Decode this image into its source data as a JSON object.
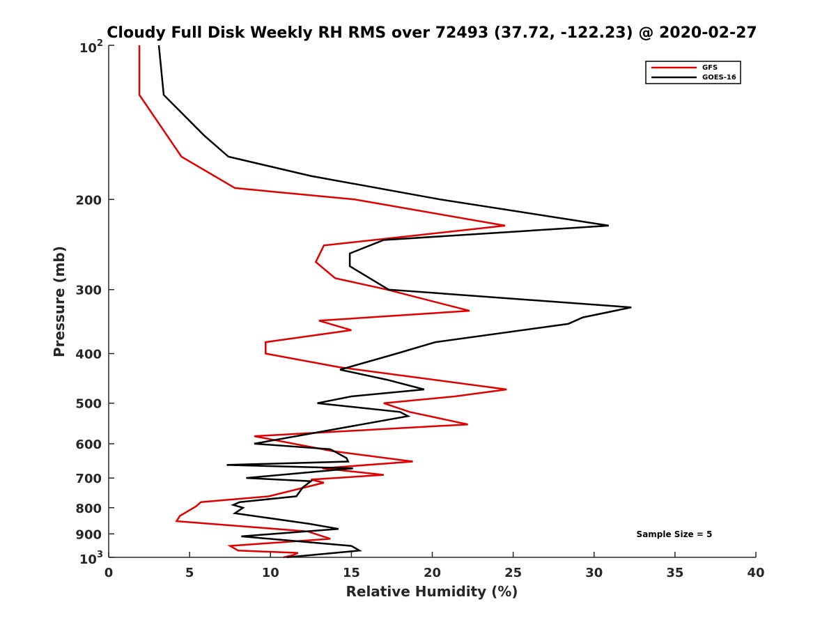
{
  "chart_data": {
    "type": "line",
    "title": "Cloudy Full Disk Weekly RH RMS over 72493 (37.72, -122.23) @ 2020-02-27",
    "xlabel": "Relative Humidity (%)",
    "ylabel": "Pressure (mb)",
    "xlim": [
      0,
      40
    ],
    "ylim": [
      100,
      1000
    ],
    "yscale": "log",
    "y_reversed": true,
    "xticks": [
      0,
      5,
      10,
      15,
      20,
      25,
      30,
      35,
      40
    ],
    "xtick_labels": [
      "0",
      "5",
      "10",
      "15",
      "20",
      "25",
      "30",
      "35",
      "40"
    ],
    "yticks": [
      200,
      300,
      400,
      500,
      600,
      700,
      800,
      900
    ],
    "ytick_labels": [
      "200",
      "300",
      "400",
      "500",
      "600",
      "700",
      "800",
      "900"
    ],
    "ytick_top": {
      "base": "10",
      "exp": "2",
      "value": 100
    },
    "ytick_bottom": {
      "base": "10",
      "exp": "3",
      "value": 1000
    },
    "grid": false,
    "legend_position": "top-right",
    "annotation": "Sample Size = 5",
    "series": [
      {
        "name": "GFS",
        "color": "#e00000",
        "points": [
          [
            1.9,
            100
          ],
          [
            1.9,
            125
          ],
          [
            4.5,
            165
          ],
          [
            7.8,
            190
          ],
          [
            15.2,
            200
          ],
          [
            24.5,
            225
          ],
          [
            13.3,
            246
          ],
          [
            12.8,
            265
          ],
          [
            14.0,
            285
          ],
          [
            17.2,
            300
          ],
          [
            22.3,
            330
          ],
          [
            13.0,
            345
          ],
          [
            15.0,
            360
          ],
          [
            9.7,
            380
          ],
          [
            9.7,
            400
          ],
          [
            14.2,
            425
          ],
          [
            24.6,
            470
          ],
          [
            21.4,
            485
          ],
          [
            17.0,
            500
          ],
          [
            18.6,
            520
          ],
          [
            22.2,
            550
          ],
          [
            9.0,
            580
          ],
          [
            13.8,
            620
          ],
          [
            18.8,
            650
          ],
          [
            13.2,
            670
          ],
          [
            17.0,
            690
          ],
          [
            12.5,
            705
          ],
          [
            13.3,
            715
          ],
          [
            9.9,
            760
          ],
          [
            5.7,
            780
          ],
          [
            5.4,
            795
          ],
          [
            4.4,
            830
          ],
          [
            4.2,
            850
          ],
          [
            12.3,
            890
          ],
          [
            13.7,
            920
          ],
          [
            7.5,
            950
          ],
          [
            8.0,
            970
          ],
          [
            11.7,
            980
          ],
          [
            11.4,
            990
          ],
          [
            10.8,
            1000
          ]
        ]
      },
      {
        "name": "GOES-16",
        "color": "#000000",
        "points": [
          [
            3.1,
            100
          ],
          [
            3.4,
            125
          ],
          [
            5.9,
            150
          ],
          [
            7.4,
            165
          ],
          [
            12.5,
            180
          ],
          [
            20.5,
            200
          ],
          [
            30.9,
            225
          ],
          [
            17.0,
            240
          ],
          [
            14.9,
            255
          ],
          [
            14.9,
            270
          ],
          [
            17.3,
            300
          ],
          [
            32.3,
            325
          ],
          [
            29.3,
            340
          ],
          [
            28.4,
            350
          ],
          [
            20.2,
            380
          ],
          [
            17.8,
            400
          ],
          [
            14.3,
            430
          ],
          [
            17.2,
            450
          ],
          [
            19.5,
            470
          ],
          [
            15.0,
            485
          ],
          [
            12.9,
            500
          ],
          [
            18.0,
            520
          ],
          [
            18.5,
            530
          ],
          [
            9.0,
            600
          ],
          [
            13.7,
            615
          ],
          [
            14.7,
            640
          ],
          [
            14.8,
            650
          ],
          [
            7.3,
            660
          ],
          [
            15.1,
            670
          ],
          [
            8.5,
            700
          ],
          [
            12.5,
            710
          ],
          [
            12.0,
            730
          ],
          [
            11.6,
            760
          ],
          [
            8.1,
            780
          ],
          [
            7.7,
            790
          ],
          [
            8.3,
            800
          ],
          [
            7.8,
            820
          ],
          [
            12.4,
            860
          ],
          [
            14.2,
            880
          ],
          [
            8.2,
            910
          ],
          [
            15.0,
            950
          ],
          [
            15.5,
            970
          ],
          [
            11.0,
            1000
          ]
        ]
      }
    ]
  }
}
